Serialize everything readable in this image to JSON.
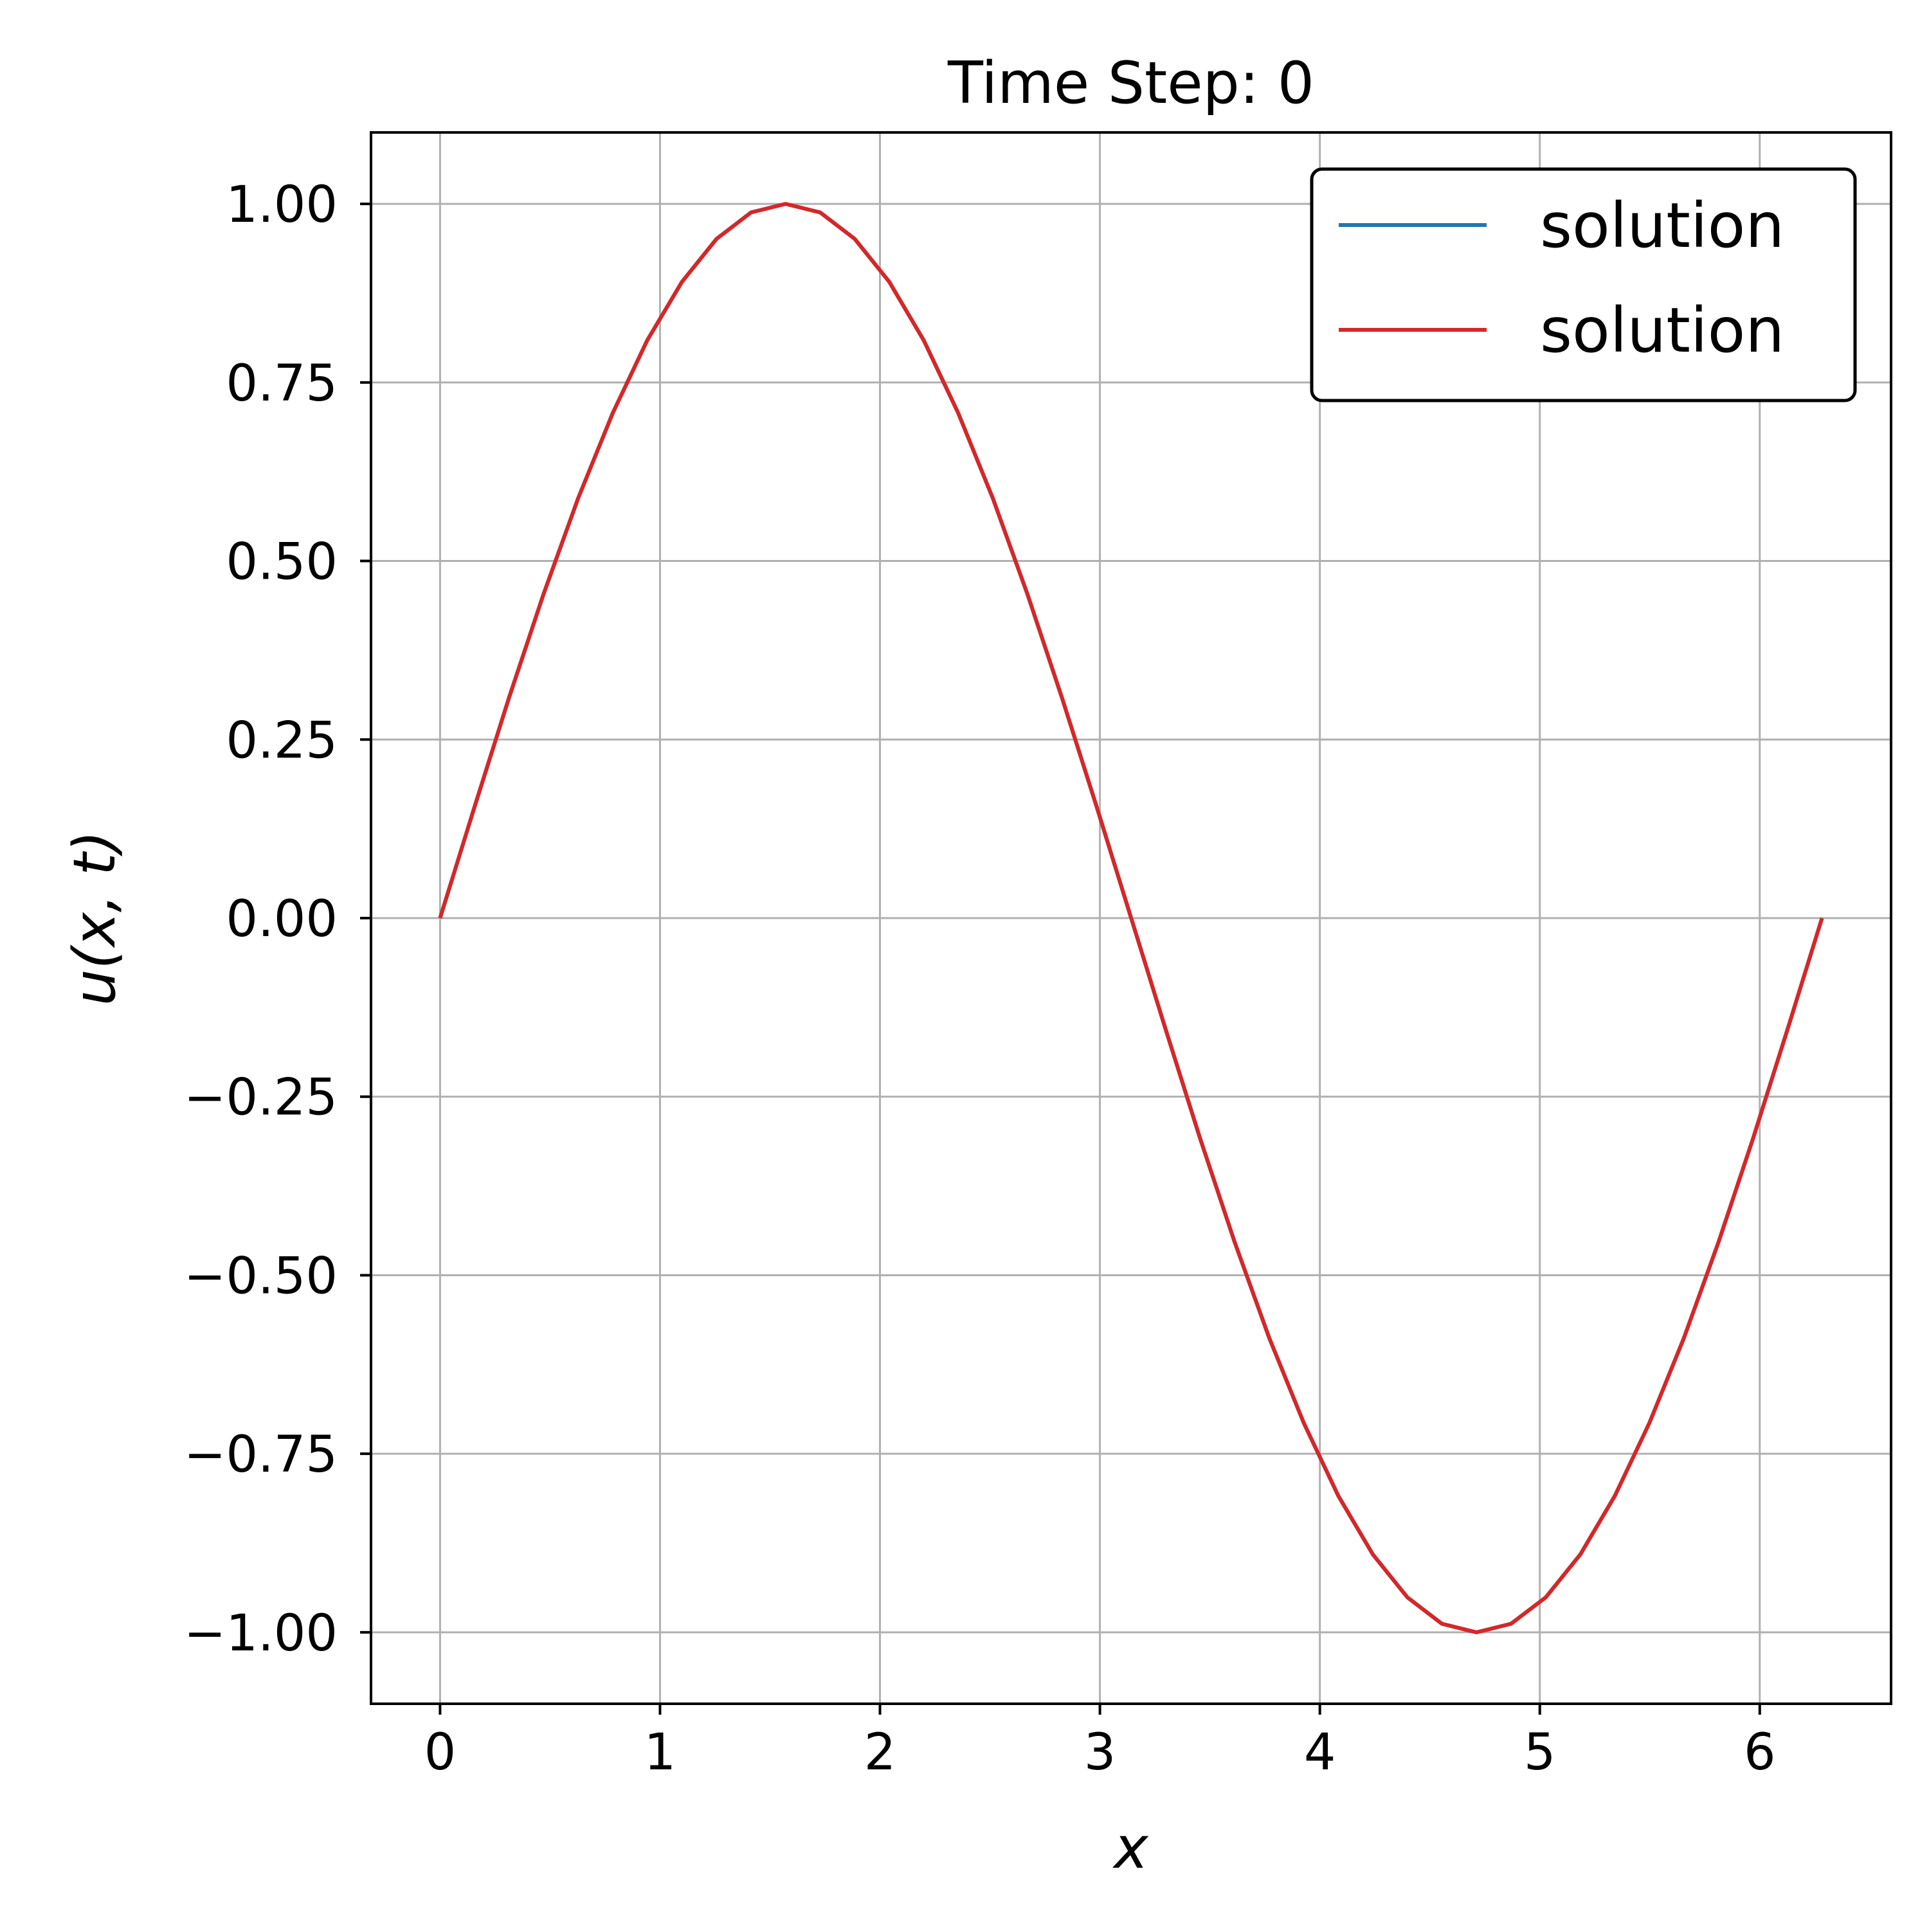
{
  "chart_data": {
    "type": "line",
    "title": "Time Step: 0",
    "xlabel": "x",
    "ylabel": "u(x, t)",
    "xlim": [
      -0.314,
      6.597
    ],
    "ylim": [
      -1.1,
      1.1
    ],
    "xticks": [
      0,
      1,
      2,
      3,
      4,
      5,
      6
    ],
    "xtick_labels": [
      "0",
      "1",
      "2",
      "3",
      "4",
      "5",
      "6"
    ],
    "yticks": [
      1.0,
      0.75,
      0.5,
      0.25,
      0.0,
      -0.25,
      -0.5,
      -0.75,
      -1.0
    ],
    "ytick_labels": [
      "1.00",
      "0.75",
      "0.50",
      "0.25",
      "0.00",
      "−0.25",
      "−0.50",
      "−0.75",
      "−1.00"
    ],
    "grid": true,
    "legend_position": "top-right",
    "x": [
      0.0,
      0.157,
      0.314,
      0.471,
      0.628,
      0.785,
      0.942,
      1.1,
      1.257,
      1.414,
      1.571,
      1.728,
      1.885,
      2.042,
      2.199,
      2.356,
      2.513,
      2.67,
      2.827,
      2.985,
      3.142,
      3.299,
      3.456,
      3.613,
      3.77,
      3.927,
      4.084,
      4.241,
      4.398,
      4.555,
      4.712,
      4.869,
      5.027,
      5.184,
      5.341,
      5.498,
      5.655,
      5.812,
      5.969,
      6.126,
      6.283
    ],
    "series": [
      {
        "name": "solution",
        "color": "#1f77b4",
        "values": [
          0.0,
          0.156,
          0.309,
          0.454,
          0.588,
          0.707,
          0.809,
          0.891,
          0.951,
          0.988,
          1.0,
          0.988,
          0.951,
          0.891,
          0.809,
          0.707,
          0.588,
          0.454,
          0.309,
          0.156,
          0.0,
          -0.156,
          -0.309,
          -0.454,
          -0.588,
          -0.707,
          -0.809,
          -0.891,
          -0.951,
          -0.988,
          -1.0,
          -0.988,
          -0.951,
          -0.891,
          -0.809,
          -0.707,
          -0.588,
          -0.454,
          -0.309,
          -0.156,
          0.0
        ]
      },
      {
        "name": "solution",
        "color": "#d62728",
        "values": [
          0.0,
          0.156,
          0.309,
          0.454,
          0.588,
          0.707,
          0.809,
          0.891,
          0.951,
          0.988,
          1.0,
          0.988,
          0.951,
          0.891,
          0.809,
          0.707,
          0.588,
          0.454,
          0.309,
          0.156,
          0.0,
          -0.156,
          -0.309,
          -0.454,
          -0.588,
          -0.707,
          -0.809,
          -0.891,
          -0.951,
          -0.988,
          -1.0,
          -0.988,
          -0.951,
          -0.891,
          -0.809,
          -0.707,
          -0.588,
          -0.454,
          -0.309,
          -0.156,
          0.0
        ]
      }
    ]
  }
}
